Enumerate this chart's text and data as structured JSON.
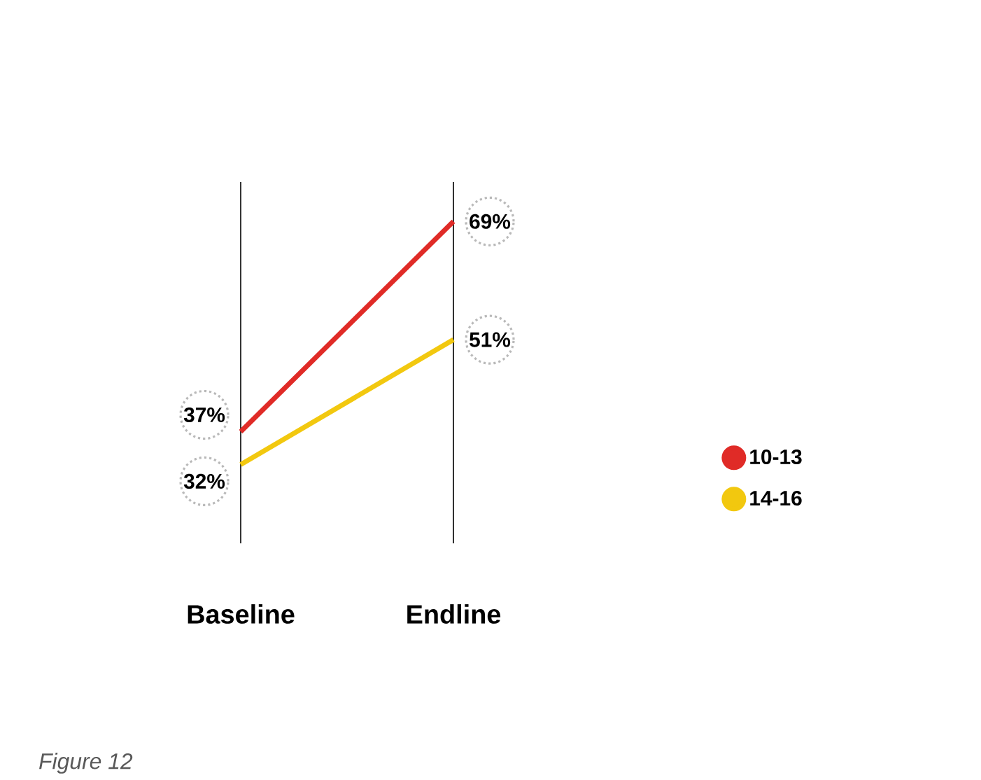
{
  "chart_data": {
    "type": "line",
    "categories": [
      "Baseline",
      "Endline"
    ],
    "series": [
      {
        "name": "10-13",
        "color": "#e02b27",
        "values": [
          37,
          69
        ],
        "value_labels": [
          "37%",
          "69%"
        ]
      },
      {
        "name": "14-16",
        "color": "#f2c80f",
        "values": [
          32,
          51
        ],
        "value_labels": [
          "32%",
          "51%"
        ]
      }
    ],
    "grid": "x",
    "legend": "right",
    "marker": "none",
    "line_style": "solid",
    "annotations": [
      "Figure 12"
    ]
  }
}
